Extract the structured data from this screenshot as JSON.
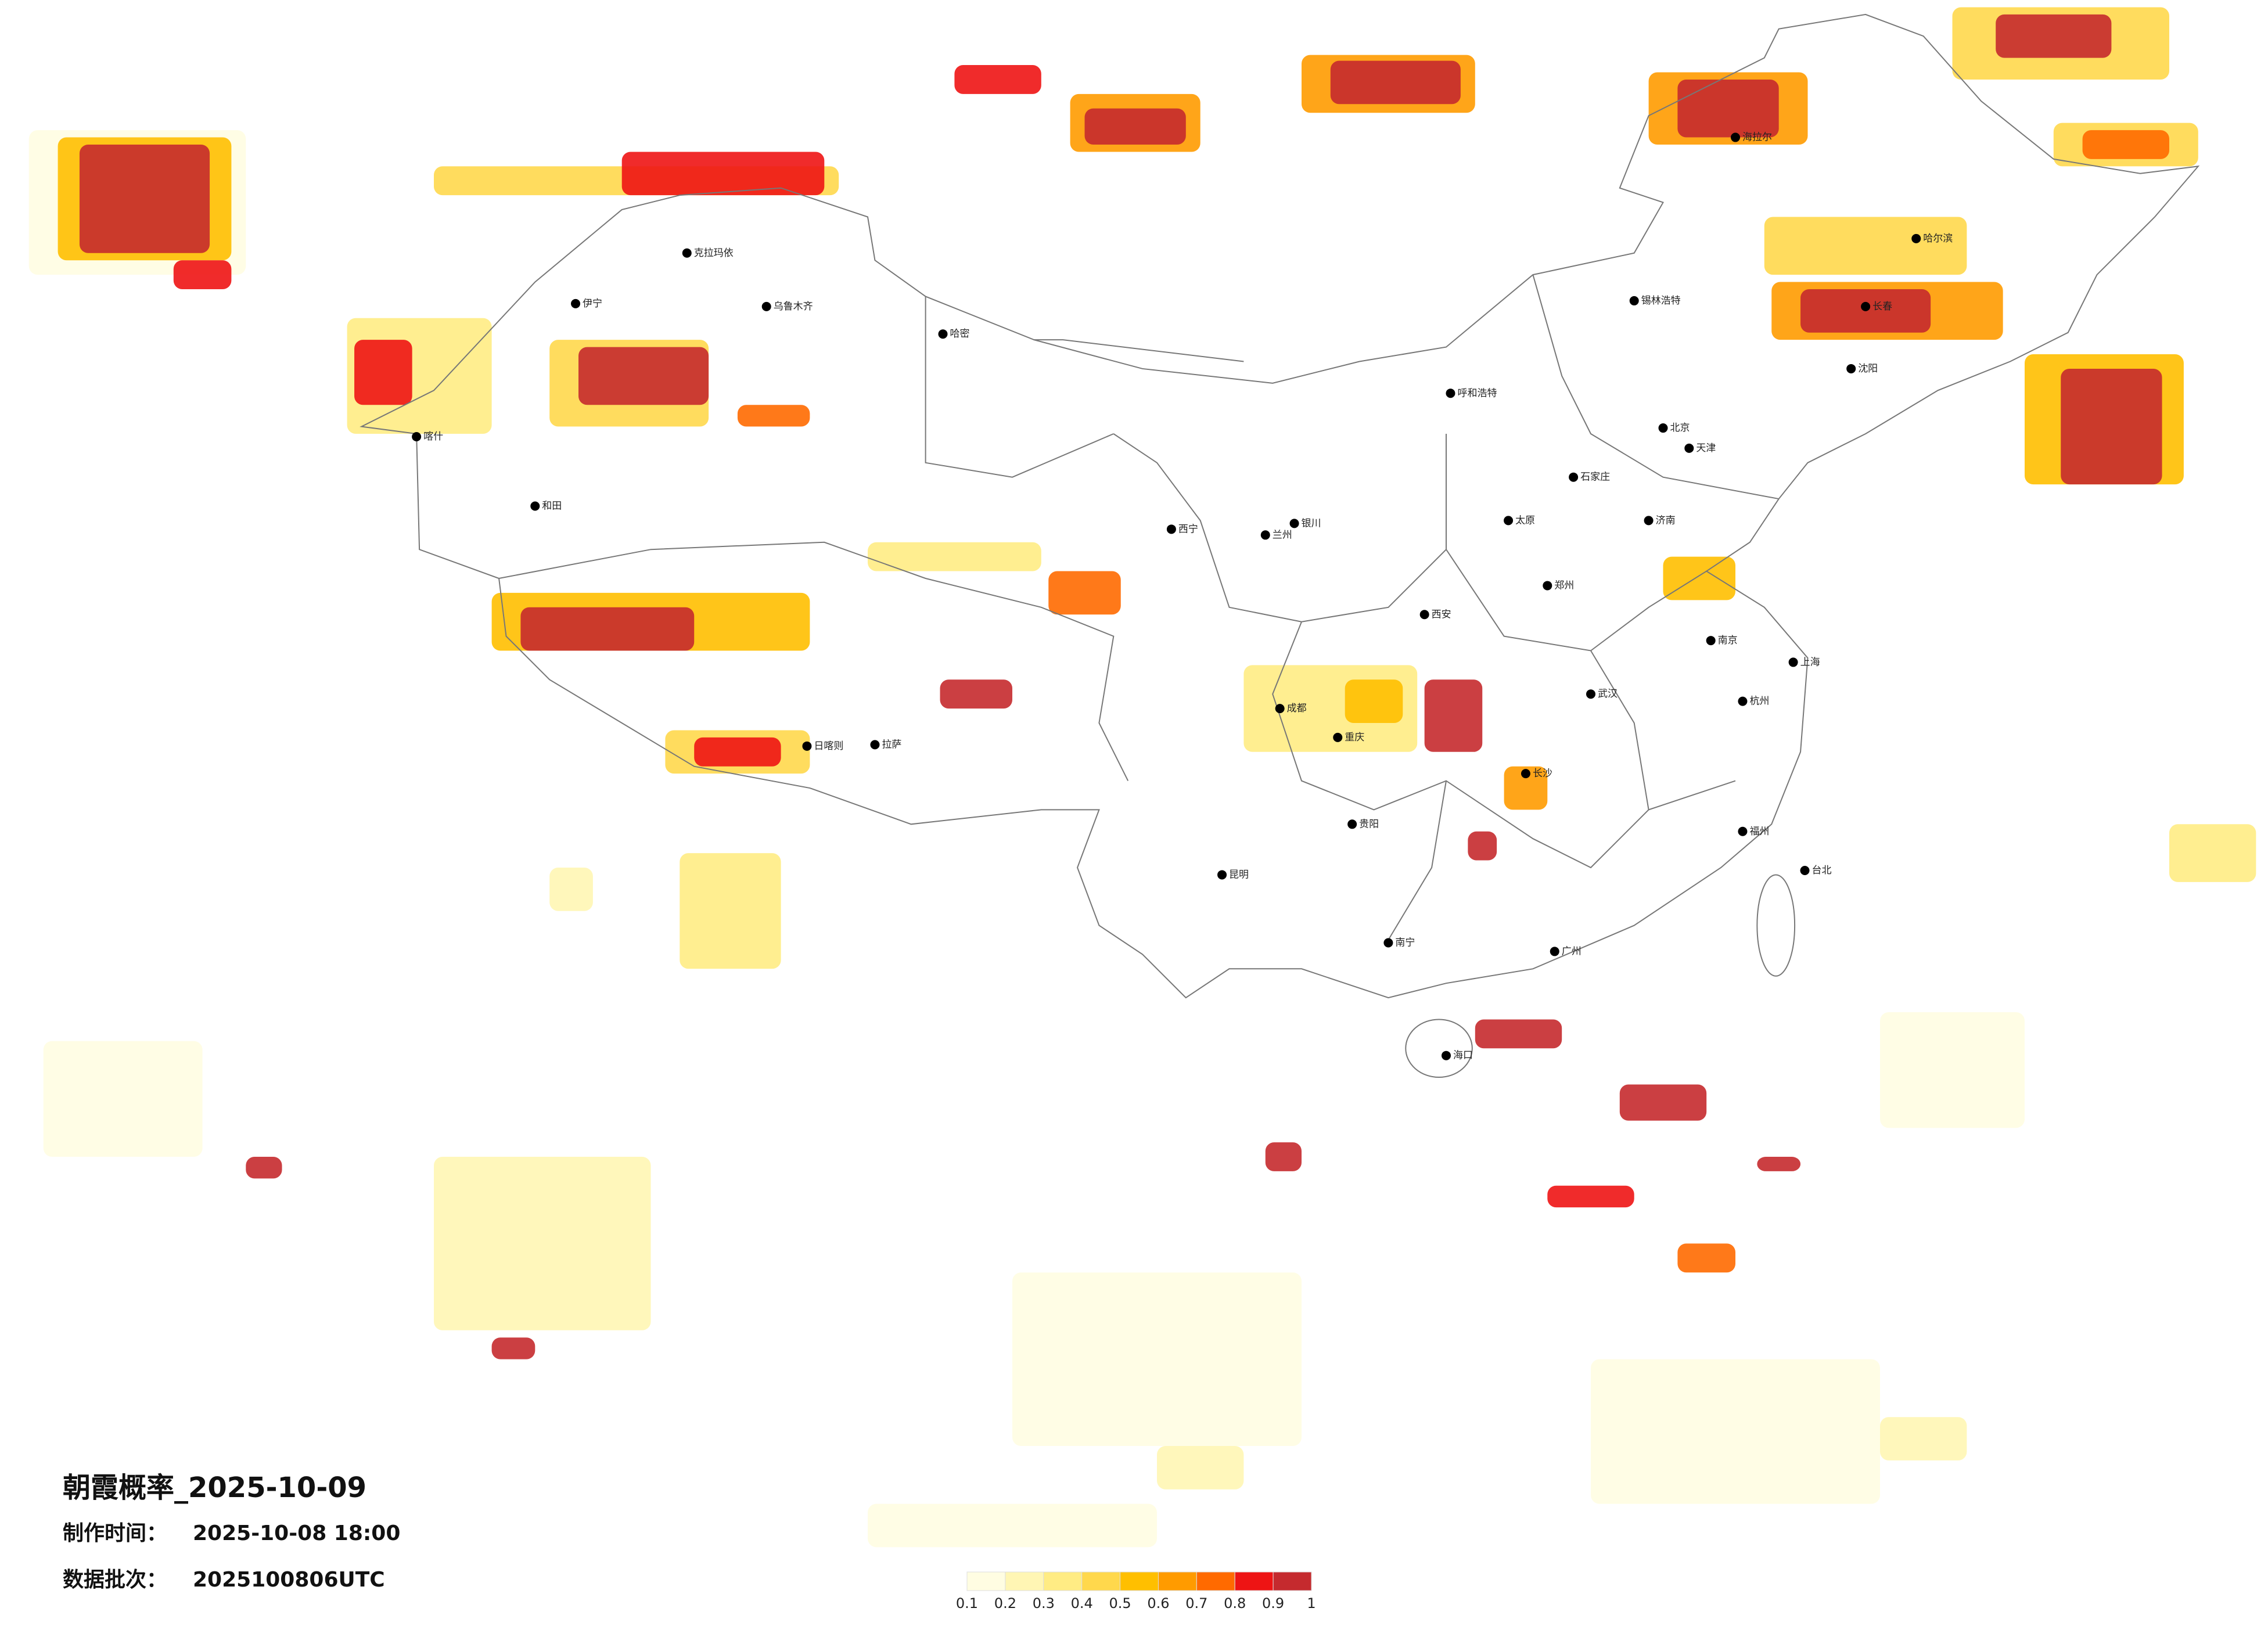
{
  "header": {
    "title": "朝霞概率_2025-10-09",
    "made_label": "制作时间：",
    "made_time": "2025-10-08 18:00",
    "batch_label": "数据批次：",
    "batch": "2025100806UTC"
  },
  "legend": {
    "ticks": [
      0.1,
      0.2,
      0.3,
      0.4,
      0.5,
      0.6,
      0.7,
      0.8,
      0.9,
      1
    ],
    "colors": [
      "#fffde2",
      "#fff6b4",
      "#ffec84",
      "#ffd84c",
      "#ffbf00",
      "#ff9b00",
      "#ff6a00",
      "#ee1414",
      "#c52a2e"
    ]
  },
  "cities": [
    "克拉玛依",
    "乌鲁木齐",
    "伊宁",
    "喀什",
    "和田",
    "哈密",
    "拉萨",
    "日喀则",
    "西宁",
    "兰州",
    "银川",
    "呼和浩特",
    "锡林浩特",
    "海拉尔",
    "哈尔滨",
    "长春",
    "沈阳",
    "北京",
    "天津",
    "石家庄",
    "太原",
    "济南",
    "郑州",
    "西安",
    "成都",
    "重庆",
    "贵阳",
    "昆明",
    "南宁",
    "广州",
    "长沙",
    "武汉",
    "南京",
    "上海",
    "杭州",
    "福州",
    "台北",
    "海口"
  ]
}
